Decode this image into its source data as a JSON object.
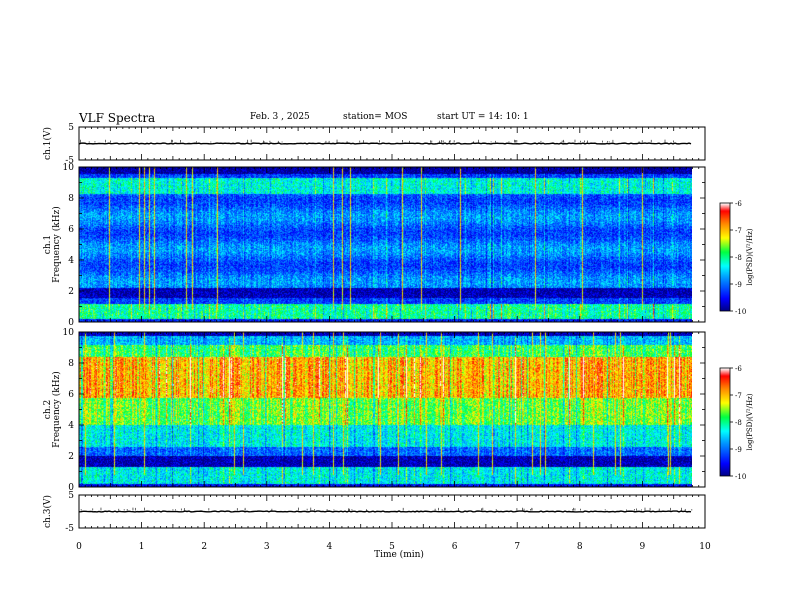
{
  "header": {
    "title": "VLF Spectra",
    "date": "Feb. 3 , 2025",
    "station": "station= MOS",
    "start_ut": "start UT = 14: 10: 1"
  },
  "chart_data": [
    {
      "type": "line",
      "name": "ch1-waveform",
      "ylabel": "ch.1(V)",
      "ylim": [
        -5,
        5
      ],
      "yticks": [
        "5",
        "-5"
      ],
      "xlim": [
        0,
        10
      ],
      "level": 0
    },
    {
      "type": "heatmap",
      "name": "ch1-spectrogram",
      "ylabel_line1": "ch.1",
      "ylabel_line2": "Frequency (kHz)",
      "ylim": [
        0,
        10
      ],
      "yticks": [
        "0",
        "2",
        "4",
        "6",
        "8",
        "10"
      ],
      "xlim": [
        0,
        10
      ],
      "colorbar": {
        "label": "log(PSD)(V²/Hz)",
        "range": [
          -10,
          -6
        ],
        "ticks": [
          "-6",
          "-7",
          "-8",
          "-9",
          "-10"
        ]
      }
    },
    {
      "type": "heatmap",
      "name": "ch2-spectrogram",
      "ylabel_line1": "ch.2",
      "ylabel_line2": "Frequency (kHz)",
      "ylim": [
        0,
        10
      ],
      "yticks": [
        "0",
        "2",
        "4",
        "6",
        "8",
        "10"
      ],
      "xlim": [
        0,
        10
      ],
      "colorbar": {
        "label": "log(PSD)(V²/Hz)",
        "range": [
          -10,
          -6
        ],
        "ticks": [
          "-6",
          "-7",
          "-8",
          "-9",
          "-10"
        ]
      }
    },
    {
      "type": "line",
      "name": "ch3-waveform",
      "ylabel": "ch.3(V)",
      "ylim": [
        -5,
        5
      ],
      "yticks": [
        "5",
        "-5"
      ],
      "xlim": [
        0,
        10
      ],
      "level": 0
    }
  ],
  "x_axis": {
    "label": "Time (min)",
    "ticks": [
      "0",
      "1",
      "2",
      "3",
      "4",
      "5",
      "6",
      "7",
      "8",
      "9",
      "10"
    ],
    "range": [
      0,
      10
    ]
  },
  "colors": {
    "colormap": [
      "#00007f",
      "#0000ff",
      "#00a0ff",
      "#00ffff",
      "#00ff40",
      "#ffff00",
      "#ff8000",
      "#ff0000",
      "#ffffff"
    ]
  }
}
